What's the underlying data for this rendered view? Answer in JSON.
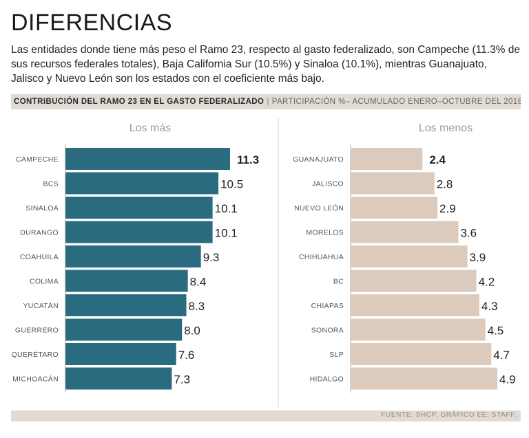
{
  "header": {
    "title": "DIFERENCIAS",
    "subtitle": "Las entidades donde tiene más peso el Ramo 23, respecto al gasto federalizado, son Campeche (11.3% de sus recursos federales totales), Baja California Sur (10.5%) y Sinaloa (10.1%), mientras Guanajuato, Jalisco y Nuevo León son los estados con el coeficiente más bajo."
  },
  "chart_header": {
    "main": "CONTRIBUCIÓN DEL RAMO 23 EN EL GASTO FEDERALIZADO",
    "separator": "|",
    "detail": "PARTICIPACIÓN %– ACUMULADO ENERO–OCTUBRE DEL 2018"
  },
  "footer": {
    "source": "FUENTE: SHCP. GRÁFICO EE: STAFF."
  },
  "colors": {
    "left_bar": "#2a6b80",
    "right_bar": "#dccbbd",
    "axis": "#cfc6bd"
  },
  "chart_data": [
    {
      "type": "bar",
      "orientation": "horizontal",
      "title": "Los más",
      "categories": [
        "CAMPECHE",
        "BCS",
        "SINALOA",
        "DURANGO",
        "COAHUILA",
        "COLIMA",
        "YUCATÁN",
        "GUERRERO",
        "QUERÉTARO",
        "MICHOACÁN"
      ],
      "values": [
        11.3,
        10.5,
        10.1,
        10.1,
        9.3,
        8.4,
        8.3,
        8.0,
        7.6,
        7.3
      ],
      "value_labels": [
        "11.3",
        "10.5",
        "10.1",
        "10.1",
        "9.3",
        "8.4",
        "8.3",
        "8.0",
        "7.6",
        "7.3"
      ],
      "xlim": [
        0,
        11.3
      ]
    },
    {
      "type": "bar",
      "orientation": "horizontal",
      "title": "Los menos",
      "categories": [
        "GUANAJUATO",
        "JALISCO",
        "NUEVO LEÓN",
        "MORELOS",
        "CHIHUAHUA",
        "BC",
        "CHIAPAS",
        "SONORA",
        "SLP",
        "HIDALGO"
      ],
      "values": [
        2.4,
        2.8,
        2.9,
        3.6,
        3.9,
        4.2,
        4.3,
        4.5,
        4.7,
        4.9
      ],
      "value_labels": [
        "2.4",
        "2.8",
        "2.9",
        "3.6",
        "3.9",
        "4.2",
        "4.3",
        "4.5",
        "4.7",
        "4.9"
      ],
      "xlim": [
        0,
        4.9
      ]
    }
  ]
}
